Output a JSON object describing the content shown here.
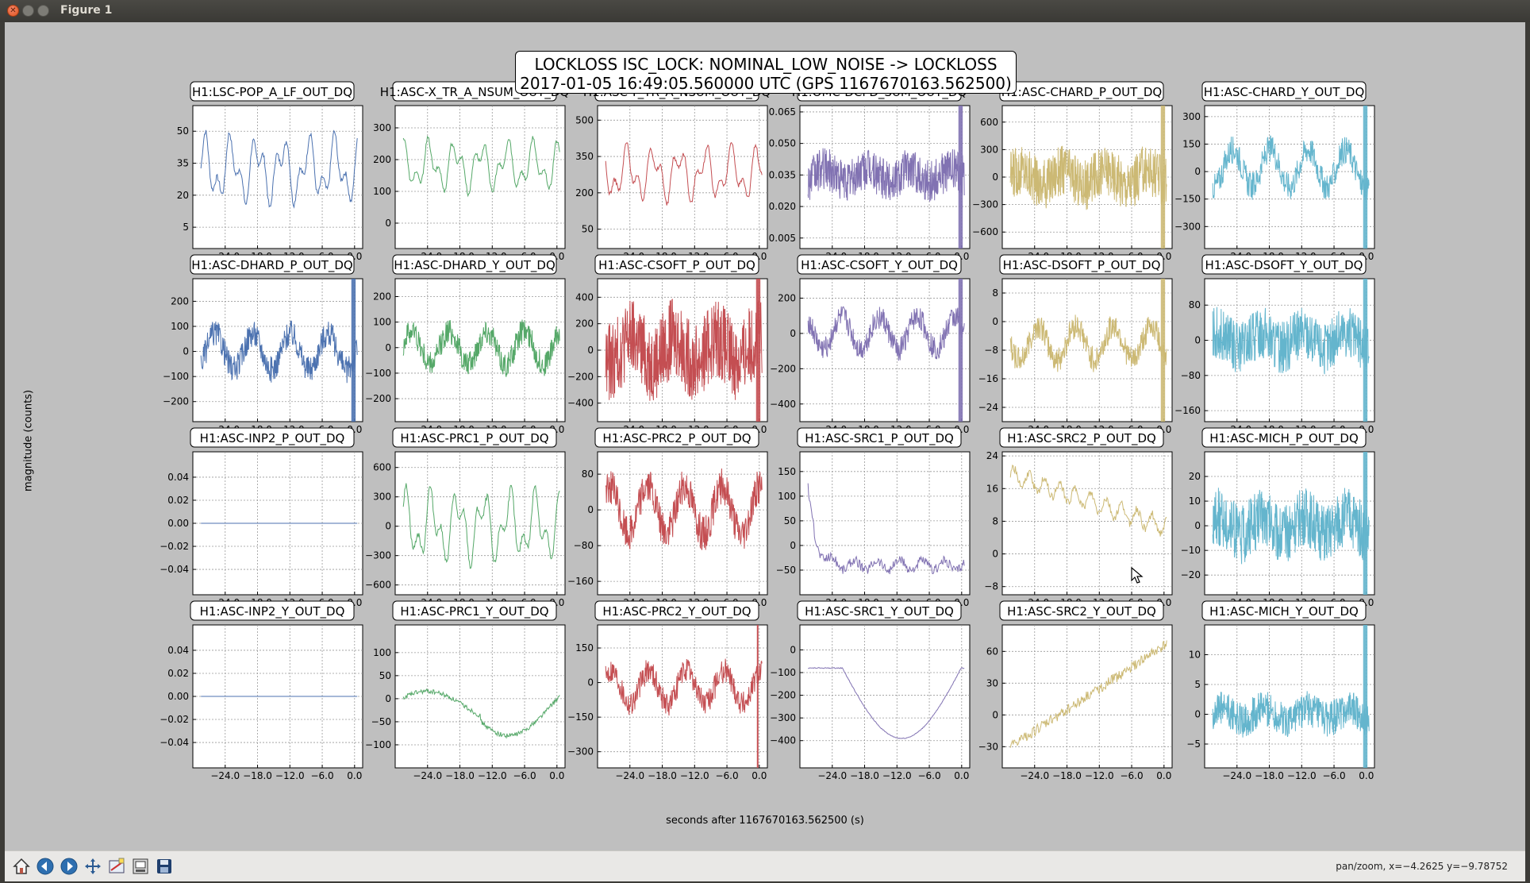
{
  "window": {
    "title": "Figure 1"
  },
  "figure": {
    "suptitle_line1": "LOCKLOSS ISC_LOCK: NOMINAL_LOW_NOISE -> LOCKLOSS",
    "suptitle_line2": "2017-01-05 16:49:05.560000 UTC (GPS 1167670163.562500)",
    "ylabel": "magnitude (counts)",
    "xlabel": "seconds after 1167670163.562500 (s)"
  },
  "toolbar": {
    "tools": [
      "home-icon",
      "back-icon",
      "forward-icon",
      "pan-icon",
      "configure-subplots-icon",
      "zoom-rect-icon",
      "save-icon"
    ],
    "status": "pan/zoom, x=−4.2625 y=−9.78752"
  },
  "chart_data": {
    "type": "line",
    "layout": "4x6 grid of subplots",
    "xlim": [
      -30,
      1.5
    ],
    "x_ticks": [
      "−24.0",
      "−18.0",
      "−12.0",
      "−6.0",
      "0.0"
    ],
    "grid": true,
    "colors": {
      "C0": "#4c72b0",
      "C1": "#55a868",
      "C2": "#c44e52",
      "C3": "#8172b2",
      "C4": "#ccb974",
      "C5": "#64b5cd"
    },
    "panels": [
      {
        "name": "H1:LSC-POP_A_LF_OUT_DQ",
        "color": "C0",
        "ylim": [
          -5,
          62
        ],
        "yticks": [
          "5",
          "20",
          "35",
          "50"
        ],
        "amp": 18,
        "center": 32,
        "kind": "lf"
      },
      {
        "name": "H1:ASC-X_TR_A_NSUM_OUT_DQ",
        "color": "C1",
        "ylim": [
          -80,
          370
        ],
        "yticks": [
          "0",
          "100",
          "200",
          "300"
        ],
        "amp": 90,
        "center": 180,
        "kind": "lf"
      },
      {
        "name": "H1:ASC-Y_TR_A_NSUM_OUT_DQ",
        "color": "C2",
        "ylim": [
          -30,
          560
        ],
        "yticks": [
          "50",
          "200",
          "350",
          "500"
        ],
        "amp": 130,
        "center": 280,
        "kind": "lf"
      },
      {
        "name": "H1:OMC-DCPD_SUM_OUT_DQ",
        "color": "C3",
        "ylim": [
          0,
          0.068
        ],
        "yticks": [
          "0.005",
          "0.020",
          "0.035",
          "0.050",
          "0.065"
        ],
        "amp": 0.01,
        "center": 0.035,
        "kind": "hf",
        "band": true
      },
      {
        "name": "H1:ASC-CHARD_P_OUT_DQ",
        "color": "C4",
        "ylim": [
          -780,
          780
        ],
        "yticks": [
          "−600",
          "−300",
          "0",
          "300",
          "600"
        ],
        "amp": 280,
        "center": 0,
        "kind": "hf",
        "band": true
      },
      {
        "name": "H1:ASC-CHARD_Y_OUT_DQ",
        "color": "C5",
        "ylim": [
          -420,
          360
        ],
        "yticks": [
          "−300",
          "−150",
          "0",
          "150",
          "300"
        ],
        "amp": 170,
        "center": 20,
        "kind": "mix",
        "band": true
      },
      {
        "name": "H1:ASC-DHARD_P_OUT_DQ",
        "color": "C0",
        "ylim": [
          -280,
          290
        ],
        "yticks": [
          "−200",
          "−100",
          "0",
          "100",
          "200"
        ],
        "amp": 120,
        "center": 0,
        "kind": "mix",
        "band": true
      },
      {
        "name": "H1:ASC-DHARD_Y_OUT_DQ",
        "color": "C1",
        "ylim": [
          -290,
          270
        ],
        "yticks": [
          "−200",
          "−100",
          "0",
          "100",
          "200"
        ],
        "amp": 110,
        "center": 0,
        "kind": "mix"
      },
      {
        "name": "H1:ASC-CSOFT_P_OUT_DQ",
        "color": "C2",
        "ylim": [
          -540,
          540
        ],
        "yticks": [
          "−400",
          "−200",
          "0",
          "200",
          "400"
        ],
        "amp": 300,
        "center": 0,
        "kind": "hf",
        "band": true
      },
      {
        "name": "H1:ASC-CSOFT_Y_OUT_DQ",
        "color": "C3",
        "ylim": [
          -500,
          310
        ],
        "yticks": [
          "−400",
          "−200",
          "0",
          "200"
        ],
        "amp": 150,
        "center": 0,
        "kind": "mix",
        "band": true
      },
      {
        "name": "H1:ASC-DSOFT_P_OUT_DQ",
        "color": "C4",
        "ylim": [
          -28,
          12
        ],
        "yticks": [
          "−24",
          "−16",
          "−8",
          "0",
          "8"
        ],
        "amp": 8,
        "center": -6,
        "kind": "mix",
        "band": true
      },
      {
        "name": "H1:ASC-DSOFT_Y_OUT_DQ",
        "color": "C5",
        "ylim": [
          -185,
          140
        ],
        "yticks": [
          "−160",
          "−80",
          "0",
          "80"
        ],
        "amp": 60,
        "center": 0,
        "kind": "hf",
        "band": true
      },
      {
        "name": "H1:ASC-INP2_P_OUT_DQ",
        "color": "C0",
        "ylim": [
          -0.062,
          0.062
        ],
        "yticks": [
          "−0.04",
          "−0.02",
          "0.00",
          "0.02",
          "0.04"
        ],
        "amp": 0,
        "center": 0,
        "kind": "flat"
      },
      {
        "name": "H1:ASC-PRC1_P_OUT_DQ",
        "color": "C1",
        "ylim": [
          -700,
          760
        ],
        "yticks": [
          "−600",
          "−300",
          "0",
          "300",
          "600"
        ],
        "amp": 420,
        "center": 0,
        "kind": "lf"
      },
      {
        "name": "H1:ASC-PRC2_P_OUT_DQ",
        "color": "C2",
        "ylim": [
          -190,
          130
        ],
        "yticks": [
          "−160",
          "−80",
          "0",
          "80"
        ],
        "amp": 90,
        "center": 0,
        "kind": "mix"
      },
      {
        "name": "H1:ASC-SRC1_P_OUT_DQ",
        "color": "C3",
        "ylim": [
          -100,
          190
        ],
        "yticks": [
          "−50",
          "0",
          "50",
          "100",
          "150"
        ],
        "amp": 20,
        "center": -40,
        "kind": "decay"
      },
      {
        "name": "H1:ASC-SRC2_P_OUT_DQ",
        "color": "C4",
        "ylim": [
          -10,
          25
        ],
        "yticks": [
          "−8",
          "0",
          "8",
          "16",
          "24"
        ],
        "amp": 3,
        "center": 10,
        "kind": "drop"
      },
      {
        "name": "H1:ASC-MICH_P_OUT_DQ",
        "color": "C5",
        "ylim": [
          -28,
          30
        ],
        "yticks": [
          "−20",
          "−10",
          "0",
          "10",
          "20"
        ],
        "amp": 12,
        "center": 0,
        "kind": "hf",
        "band": true
      },
      {
        "name": "H1:ASC-INP2_Y_OUT_DQ",
        "color": "C0",
        "ylim": [
          -0.062,
          0.062
        ],
        "yticks": [
          "−0.04",
          "−0.02",
          "0.00",
          "0.02",
          "0.04"
        ],
        "amp": 0,
        "center": 0,
        "kind": "flat"
      },
      {
        "name": "H1:ASC-PRC1_Y_OUT_DQ",
        "color": "C1",
        "ylim": [
          -150,
          160
        ],
        "yticks": [
          "−100",
          "−50",
          "0",
          "50",
          "100"
        ],
        "amp": 60,
        "center": 0,
        "kind": "slowwave"
      },
      {
        "name": "H1:ASC-PRC2_Y_OUT_DQ",
        "color": "C2",
        "ylim": [
          -370,
          250
        ],
        "yticks": [
          "−300",
          "−150",
          "0",
          "150"
        ],
        "amp": 120,
        "center": -20,
        "kind": "mix",
        "spike": true
      },
      {
        "name": "H1:ASC-SRC1_Y_OUT_DQ",
        "color": "C3",
        "ylim": [
          -520,
          110
        ],
        "yticks": [
          "−400",
          "−300",
          "−200",
          "−100",
          "0"
        ],
        "amp": 0,
        "center": 0,
        "kind": "bowl"
      },
      {
        "name": "H1:ASC-SRC2_Y_OUT_DQ",
        "color": "C4",
        "ylim": [
          -50,
          85
        ],
        "yticks": [
          "−30",
          "0",
          "30",
          "60"
        ],
        "amp": 5,
        "center": 0,
        "kind": "ramp"
      },
      {
        "name": "H1:ASC-MICH_Y_OUT_DQ",
        "color": "C5",
        "ylim": [
          -9,
          15
        ],
        "yticks": [
          "−5",
          "0",
          "5",
          "10"
        ],
        "amp": 3,
        "center": 0,
        "kind": "hf",
        "band": true
      }
    ]
  }
}
